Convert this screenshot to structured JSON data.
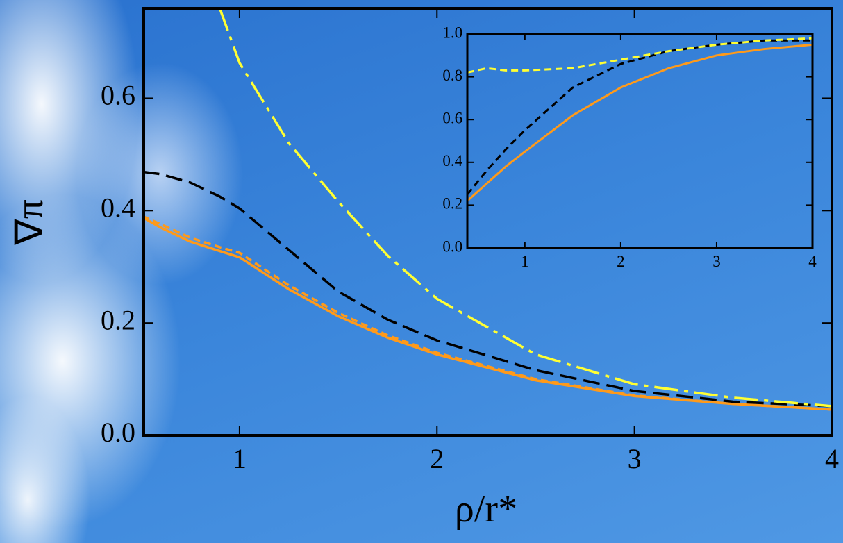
{
  "chart_data": [
    {
      "type": "line",
      "x_label": "ρ/r*",
      "y_label": "∇π",
      "x": [
        0.51,
        0.6,
        0.75,
        0.9,
        1,
        1.25,
        1.5,
        1.75,
        2,
        2.5,
        3,
        3.5,
        4
      ],
      "series": [
        {
          "color": "#ff9a1a",
          "dash": "solid",
          "values": [
            0.388,
            0.37,
            0.345,
            0.328,
            0.317,
            0.26,
            0.212,
            0.174,
            0.144,
            0.098,
            0.07,
            0.056,
            0.046
          ]
        },
        {
          "color": "#ff9a1a",
          "dash": "dashed",
          "values": [
            0.39,
            0.376,
            0.352,
            0.335,
            0.325,
            0.267,
            0.218,
            0.178,
            0.147,
            0.1,
            0.071,
            0.056,
            0.046
          ]
        },
        {
          "color": "#000000",
          "dash": "longdash",
          "values": [
            0.469,
            0.465,
            0.45,
            0.425,
            0.404,
            0.33,
            0.256,
            0.206,
            0.169,
            0.116,
            0.079,
            0.06,
            0.052
          ]
        },
        {
          "color": "#ffff33",
          "dash": "dashdot",
          "values": [
            null,
            null,
            null,
            0.76,
            0.663,
            0.52,
            0.416,
            0.32,
            0.243,
            0.144,
            0.091,
            0.067,
            0.052
          ]
        }
      ],
      "xlim": [
        0.515,
        4
      ],
      "ylim": [
        0,
        0.76
      ],
      "xticks": [
        1,
        2,
        3,
        4
      ],
      "yticks": [
        {
          "value": 0,
          "label": "0.0"
        },
        0.2,
        0.4,
        0.6
      ]
    },
    {
      "type": "line",
      "x": [
        0.4,
        0.6,
        0.8,
        1,
        1.5,
        2,
        2.5,
        3,
        3.5,
        4
      ],
      "series": [
        {
          "color": "#ff9a1a",
          "dash": "solid",
          "values": [
            0.22,
            0.3,
            0.38,
            0.45,
            0.62,
            0.75,
            0.84,
            0.9,
            0.93,
            0.95
          ]
        },
        {
          "color": "#000000",
          "dash": "dashed",
          "values": [
            0.25,
            0.36,
            0.46,
            0.55,
            0.75,
            0.86,
            0.92,
            0.95,
            0.97,
            0.97
          ]
        },
        {
          "color": "#ffff33",
          "dash": "dashed",
          "values": [
            0.82,
            0.84,
            0.83,
            0.83,
            0.84,
            0.88,
            0.92,
            0.95,
            0.97,
            0.98
          ]
        }
      ],
      "xlim": [
        0.4,
        4
      ],
      "ylim": [
        0,
        1
      ],
      "xticks": [
        1,
        2,
        3,
        4
      ],
      "yticks": [
        {
          "value": 0,
          "label": "0.0"
        },
        0.2,
        0.4,
        0.6,
        0.8,
        {
          "value": 1,
          "label": "1.0"
        }
      ]
    }
  ]
}
